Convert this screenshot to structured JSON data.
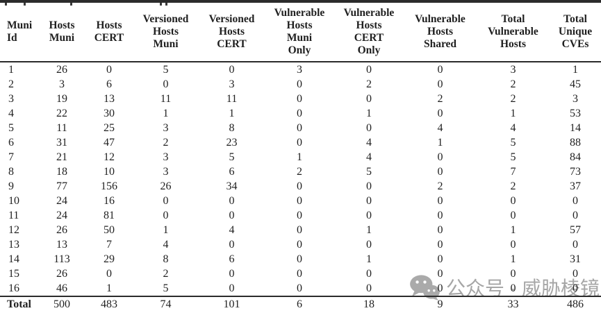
{
  "page": {
    "background_color": "#ffffff",
    "text_color": "#1f1f1f",
    "rule_color": "#2b2b2b"
  },
  "watermark": {
    "icon": "wechat-icon",
    "text": "公众号 · 威胁棱镜",
    "color": "#a6a6a6"
  },
  "table": {
    "columns": [
      "Muni\nId",
      "Hosts\nMuni",
      "Hosts\nCERT",
      "Versioned\nHosts\nMuni",
      "Versioned\nHosts\nCERT",
      "Vulnerable\nHosts\nMuni\nOnly",
      "Vulnerable\nHosts\nCERT\nOnly",
      "Vulnerable\nHosts\nShared",
      "Total\nVulnerable\nHosts",
      "Total\nUnique\nCVEs"
    ],
    "rows": [
      [
        "1",
        "26",
        "0",
        "5",
        "0",
        "3",
        "0",
        "0",
        "3",
        "1"
      ],
      [
        "2",
        "3",
        "6",
        "0",
        "3",
        "0",
        "2",
        "0",
        "2",
        "45"
      ],
      [
        "3",
        "19",
        "13",
        "11",
        "11",
        "0",
        "0",
        "2",
        "2",
        "3"
      ],
      [
        "4",
        "22",
        "30",
        "1",
        "1",
        "0",
        "1",
        "0",
        "1",
        "53"
      ],
      [
        "5",
        "11",
        "25",
        "3",
        "8",
        "0",
        "0",
        "4",
        "4",
        "14"
      ],
      [
        "6",
        "31",
        "47",
        "2",
        "23",
        "0",
        "4",
        "1",
        "5",
        "88"
      ],
      [
        "7",
        "21",
        "12",
        "3",
        "5",
        "1",
        "4",
        "0",
        "5",
        "84"
      ],
      [
        "8",
        "18",
        "10",
        "3",
        "6",
        "2",
        "5",
        "0",
        "7",
        "73"
      ],
      [
        "9",
        "77",
        "156",
        "26",
        "34",
        "0",
        "0",
        "2",
        "2",
        "37"
      ],
      [
        "10",
        "24",
        "16",
        "0",
        "0",
        "0",
        "0",
        "0",
        "0",
        "0"
      ],
      [
        "11",
        "24",
        "81",
        "0",
        "0",
        "0",
        "0",
        "0",
        "0",
        "0"
      ],
      [
        "12",
        "26",
        "50",
        "1",
        "4",
        "0",
        "1",
        "0",
        "1",
        "57"
      ],
      [
        "13",
        "13",
        "7",
        "4",
        "0",
        "0",
        "0",
        "0",
        "0",
        "0"
      ],
      [
        "14",
        "113",
        "29",
        "8",
        "6",
        "0",
        "1",
        "0",
        "1",
        "31"
      ],
      [
        "15",
        "26",
        "0",
        "2",
        "0",
        "0",
        "0",
        "0",
        "0",
        "0"
      ],
      [
        "16",
        "46",
        "1",
        "5",
        "0",
        "0",
        "0",
        "0",
        "0",
        "0"
      ]
    ],
    "totals": [
      [
        "Total",
        "500",
        "483",
        "74",
        "101",
        "6",
        "18",
        "9",
        "33",
        "486"
      ]
    ]
  }
}
